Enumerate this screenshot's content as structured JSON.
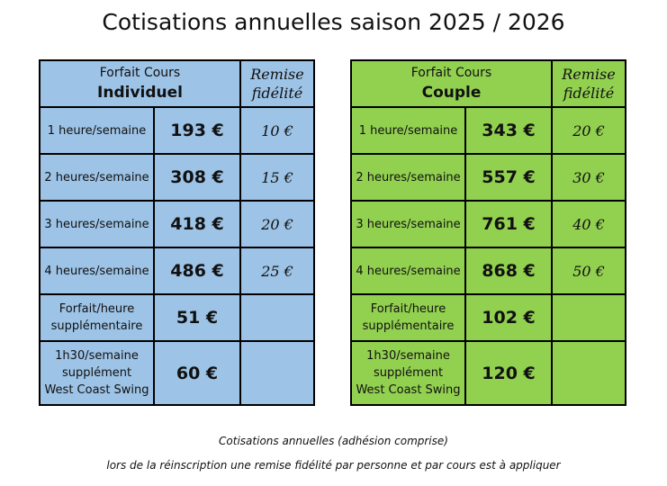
{
  "title": "Cotisations annuelles saison 2025 / 2026",
  "individuel": {
    "header_top": "Forfait Cours",
    "header_main": "Individuel",
    "remise_header": [
      "Remise",
      "fidélité"
    ],
    "rows": [
      {
        "label": [
          "1 heure/semaine"
        ],
        "price": "193 €",
        "remise": "10 €"
      },
      {
        "label": [
          "2 heures/semaine"
        ],
        "price": "308 €",
        "remise": "15 €"
      },
      {
        "label": [
          "3 heures/semaine"
        ],
        "price": "418 €",
        "remise": "20 €"
      },
      {
        "label": [
          "4 heures/semaine"
        ],
        "price": "486 €",
        "remise": "25 €"
      },
      {
        "label": [
          "Forfait/heure",
          "supplémentaire"
        ],
        "price": "51 €",
        "remise": ""
      },
      {
        "label": [
          "1h30/semaine",
          "supplément",
          "West Coast Swing"
        ],
        "price": "60 €",
        "remise": ""
      }
    ]
  },
  "couple": {
    "header_top": "Forfait Cours",
    "header_main": "Couple",
    "remise_header": [
      "Remise",
      "fidélité"
    ],
    "rows": [
      {
        "label": [
          "1 heure/semaine"
        ],
        "price": "343 €",
        "remise": "20 €"
      },
      {
        "label": [
          "2 heures/semaine"
        ],
        "price": "557 €",
        "remise": "30 €"
      },
      {
        "label": [
          "3 heures/semaine"
        ],
        "price": "761 €",
        "remise": "40 €"
      },
      {
        "label": [
          "4 heures/semaine"
        ],
        "price": "868 €",
        "remise": "50 €"
      },
      {
        "label": [
          "Forfait/heure",
          "supplémentaire"
        ],
        "price": "102 €",
        "remise": ""
      },
      {
        "label": [
          "1h30/semaine",
          "supplément",
          "West Coast Swing"
        ],
        "price": "120 €",
        "remise": ""
      }
    ]
  },
  "footer": {
    "line1": "Cotisations annuelles (adhésion comprise)",
    "line2": "lors de la réinscription une remise fidélité par personne et par cours est à appliquer"
  },
  "colors": {
    "individuel_bg": "#9dc3e6",
    "couple_bg": "#92d050",
    "border": "#000000"
  }
}
